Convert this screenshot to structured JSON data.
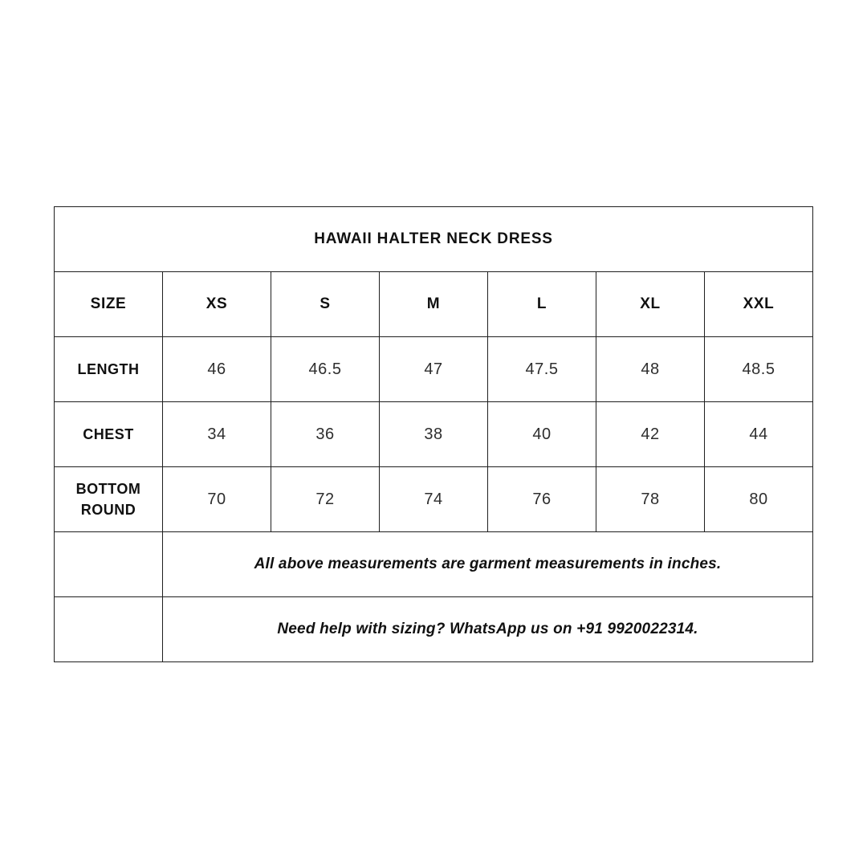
{
  "chart_data": {
    "type": "table",
    "title": "HAWAII HALTER NECK DRESS",
    "columns": [
      "SIZE",
      "XS",
      "S",
      "M",
      "L",
      "XL",
      "XXL"
    ],
    "rows": [
      {
        "label": "LENGTH",
        "values": [
          "46",
          "46.5",
          "47",
          "47.5",
          "48",
          "48.5"
        ]
      },
      {
        "label": "CHEST",
        "values": [
          "34",
          "36",
          "38",
          "40",
          "42",
          "44"
        ]
      },
      {
        "label": "BOTTOM ROUND",
        "values": [
          "70",
          "72",
          "74",
          "76",
          "78",
          "80"
        ]
      }
    ],
    "notes": [
      "All above measurements are garment measurements in inches.",
      "Need help with sizing? WhatsApp us on +91 9920022314."
    ]
  },
  "colors": {
    "background": "#ffffff",
    "border": "#1f1f1f",
    "heading_text": "#111111",
    "value_text": "#2e2e2e"
  }
}
